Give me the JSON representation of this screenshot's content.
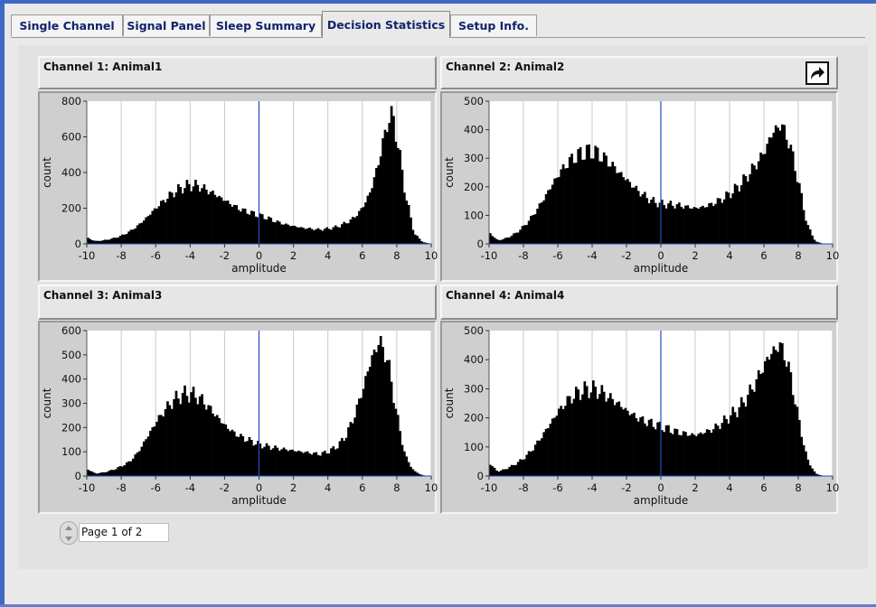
{
  "tabs": [
    {
      "label": "Single Channel",
      "active": false
    },
    {
      "label": "Signal Panel",
      "active": false
    },
    {
      "label": "Sleep Summary",
      "active": false
    },
    {
      "label": "Decision Statistics",
      "active": true
    },
    {
      "label": "Setup Info.",
      "active": false
    }
  ],
  "channels": [
    {
      "title": "Channel 1: Animal1"
    },
    {
      "title": "Channel 2: Animal2"
    },
    {
      "title": "Channel 3: Animal3"
    },
    {
      "title": "Channel 4: Animal4"
    }
  ],
  "export_icon": "export-arrow-icon",
  "pager": {
    "text": "Page 1 of 2"
  },
  "colors": {
    "bars": "#000000",
    "cursor_line": "#1f4fbf",
    "plot_bg": "#ffffff",
    "accent": "#3f67c4"
  },
  "chart_data": [
    {
      "type": "bar",
      "title": "Channel 1: Animal1",
      "xlabel": "amplitude",
      "ylabel": "count",
      "xlim": [
        -10,
        10
      ],
      "ylim": [
        0,
        800
      ],
      "xticks": [
        -10,
        -8,
        -6,
        -4,
        -2,
        0,
        2,
        4,
        6,
        8,
        10
      ],
      "yticks": [
        0,
        200,
        400,
        600,
        800
      ],
      "grid": "vertical",
      "cursor_x": 0,
      "histogram": {
        "x": [
          -10,
          -9.5,
          -9,
          -8.5,
          -8,
          -7.5,
          -7,
          -6.5,
          -6,
          -5.5,
          -5,
          -4.5,
          -4,
          -3.5,
          -3,
          -2.5,
          -2,
          -1.5,
          -1,
          -0.5,
          0,
          0.5,
          1,
          1.5,
          2,
          2.5,
          3,
          3.5,
          4,
          4.5,
          5,
          5.5,
          6,
          6.5,
          7,
          7.5,
          7.75,
          8,
          8.5,
          9,
          9.5,
          10
        ],
        "y": [
          35,
          15,
          20,
          30,
          45,
          70,
          105,
          150,
          200,
          245,
          285,
          315,
          330,
          325,
          300,
          275,
          245,
          215,
          190,
          175,
          160,
          145,
          125,
          110,
          100,
          90,
          85,
          80,
          85,
          95,
          115,
          145,
          200,
          300,
          480,
          700,
          720,
          600,
          280,
          60,
          10,
          0
        ]
      }
    },
    {
      "type": "bar",
      "title": "Channel 2: Animal2",
      "xlabel": "amplitude",
      "ylabel": "count",
      "xlim": [
        -10,
        10
      ],
      "ylim": [
        0,
        500
      ],
      "xticks": [
        -10,
        -8,
        -6,
        -4,
        -2,
        0,
        2,
        4,
        6,
        8,
        10
      ],
      "yticks": [
        0,
        100,
        200,
        300,
        400,
        500
      ],
      "grid": "vertical",
      "cursor_x": 0,
      "histogram": {
        "x": [
          -10,
          -9.5,
          -9,
          -8.5,
          -8,
          -7.5,
          -7,
          -6.5,
          -6,
          -5.5,
          -5,
          -4.5,
          -4,
          -3.5,
          -3,
          -2.5,
          -2,
          -1.5,
          -1,
          -0.5,
          0,
          0.5,
          1,
          1.5,
          2,
          2.5,
          3,
          3.5,
          4,
          4.5,
          5,
          5.5,
          6,
          6.5,
          7,
          7.5,
          8,
          8.5,
          9,
          9.5,
          10
        ],
        "y": [
          40,
          12,
          20,
          35,
          60,
          95,
          140,
          190,
          240,
          280,
          305,
          320,
          325,
          310,
          285,
          255,
          225,
          195,
          170,
          150,
          140,
          138,
          135,
          130,
          125,
          130,
          140,
          155,
          175,
          200,
          235,
          275,
          320,
          390,
          420,
          350,
          220,
          70,
          8,
          0,
          0
        ]
      }
    },
    {
      "type": "bar",
      "title": "Channel 3: Animal3",
      "xlabel": "amplitude",
      "ylabel": "count",
      "xlim": [
        -10,
        10
      ],
      "ylim": [
        0,
        600
      ],
      "xticks": [
        -10,
        -8,
        -6,
        -4,
        -2,
        0,
        2,
        4,
        6,
        8,
        10
      ],
      "yticks": [
        0,
        100,
        200,
        300,
        400,
        500,
        600
      ],
      "grid": "vertical",
      "cursor_x": 0,
      "histogram": {
        "x": [
          -10,
          -9.5,
          -9,
          -8.5,
          -8,
          -7.5,
          -7,
          -6.5,
          -6,
          -5.5,
          -5,
          -4.5,
          -4,
          -3.5,
          -3,
          -2.5,
          -2,
          -1.5,
          -1,
          -0.5,
          0,
          0.5,
          1,
          1.5,
          2,
          2.5,
          3,
          3.5,
          4,
          4.5,
          5,
          5.5,
          6,
          6.5,
          7,
          7.5,
          8,
          8.5,
          9,
          9.5,
          10
        ],
        "y": [
          30,
          10,
          15,
          25,
          40,
          60,
          100,
          160,
          220,
          270,
          310,
          335,
          340,
          325,
          290,
          250,
          210,
          180,
          160,
          145,
          130,
          122,
          115,
          110,
          105,
          100,
          95,
          90,
          100,
          120,
          160,
          240,
          350,
          480,
          560,
          470,
          250,
          80,
          20,
          3,
          0
        ]
      }
    },
    {
      "type": "bar",
      "title": "Channel 4: Animal4",
      "xlabel": "amplitude",
      "ylabel": "count",
      "xlim": [
        -10,
        10
      ],
      "ylim": [
        0,
        500
      ],
      "xticks": [
        -10,
        -8,
        -6,
        -4,
        -2,
        0,
        2,
        4,
        6,
        8,
        10
      ],
      "yticks": [
        0,
        100,
        200,
        300,
        400,
        500
      ],
      "grid": "vertical",
      "cursor_x": 0,
      "histogram": {
        "x": [
          -10,
          -9.5,
          -9,
          -8.5,
          -8,
          -7.5,
          -7,
          -6.5,
          -6,
          -5.5,
          -5,
          -4.5,
          -4,
          -3.5,
          -3,
          -2.5,
          -2,
          -1.5,
          -1,
          -0.5,
          0,
          0.5,
          1,
          1.5,
          2,
          2.5,
          3,
          3.5,
          4,
          4.5,
          5,
          5.5,
          6,
          6.5,
          7,
          7.5,
          8,
          8.5,
          9,
          9.5,
          10
        ],
        "y": [
          45,
          15,
          25,
          40,
          60,
          90,
          130,
          175,
          220,
          255,
          280,
          295,
          300,
          290,
          270,
          250,
          225,
          205,
          190,
          180,
          170,
          160,
          150,
          145,
          140,
          150,
          160,
          180,
          205,
          230,
          270,
          320,
          380,
          430,
          450,
          360,
          200,
          60,
          8,
          0,
          0
        ]
      }
    }
  ]
}
